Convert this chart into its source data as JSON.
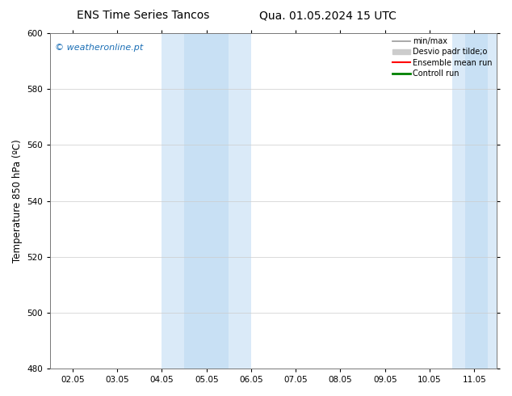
{
  "title_left": "ENS Time Series Tancos",
  "title_right": "Qua. 01.05.2024 15 UTC",
  "ylabel": "Temperature 850 hPa (ºC)",
  "ylim": [
    480,
    600
  ],
  "yticks": [
    480,
    500,
    520,
    540,
    560,
    580,
    600
  ],
  "x_labels": [
    "02.05",
    "03.05",
    "04.05",
    "05.05",
    "06.05",
    "07.05",
    "08.05",
    "09.05",
    "10.05",
    "11.05"
  ],
  "x_values": [
    0,
    1,
    2,
    3,
    4,
    5,
    6,
    7,
    8,
    9
  ],
  "xlim": [
    -0.5,
    9.5
  ],
  "shaded_bands": [
    {
      "x_start": 2.0,
      "x_end": 4.0,
      "color": "#daeaf8"
    },
    {
      "x_start": 8.5,
      "x_end": 9.5,
      "color": "#daeaf8"
    }
  ],
  "inner_bands": [
    {
      "x_start": 2.5,
      "x_end": 3.5,
      "color": "#c8e0f4"
    },
    {
      "x_start": 8.8,
      "x_end": 9.3,
      "color": "#c8e0f4"
    }
  ],
  "watermark": "© weatheronline.pt",
  "watermark_color": "#1a6eb5",
  "legend_label_minmax": "min/max",
  "legend_label_desvio": "Desvio padr tilde;o",
  "legend_label_ensemble": "Ensemble mean run",
  "legend_label_control": "Controll run",
  "legend_color_minmax": "#999999",
  "legend_color_desvio": "#cccccc",
  "legend_color_ensemble": "#ff0000",
  "legend_color_control": "#008000",
  "bg_color": "#ffffff",
  "plot_bg_color": "#ffffff",
  "grid_color": "#cccccc",
  "title_fontsize": 10,
  "tick_fontsize": 7.5,
  "ylabel_fontsize": 8.5,
  "legend_fontsize": 7,
  "watermark_fontsize": 8
}
